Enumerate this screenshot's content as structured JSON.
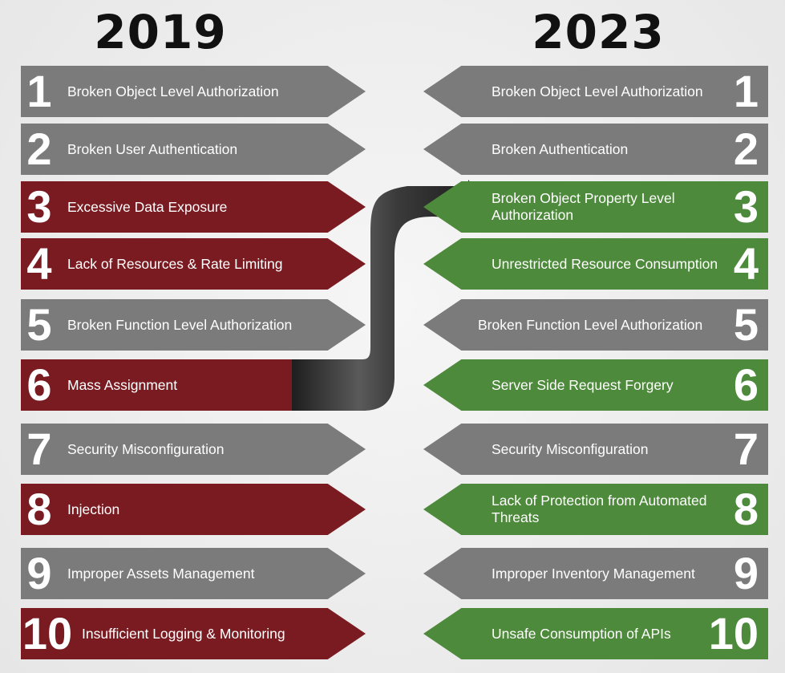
{
  "years": {
    "left": "2019",
    "right": "2023"
  },
  "left_items": [
    {
      "num": "1",
      "label": "Broken Object Level Authorization",
      "color": "gray"
    },
    {
      "num": "2",
      "label": "Broken User Authentication",
      "color": "gray"
    },
    {
      "num": "3",
      "label": "Excessive Data Exposure",
      "color": "red"
    },
    {
      "num": "4",
      "label": "Lack of Resources & Rate Limiting",
      "color": "red"
    },
    {
      "num": "5",
      "label": "Broken Function Level Authorization",
      "color": "gray"
    },
    {
      "num": "6",
      "label": "Mass Assignment",
      "color": "red"
    },
    {
      "num": "7",
      "label": "Security Misconfiguration",
      "color": "gray"
    },
    {
      "num": "8",
      "label": "Injection",
      "color": "red"
    },
    {
      "num": "9",
      "label": "Improper Assets Management",
      "color": "gray"
    },
    {
      "num": "10",
      "label": "Insufficient Logging & Monitoring",
      "color": "red"
    }
  ],
  "right_items": [
    {
      "num": "1",
      "label": "Broken Object Level Authorization",
      "color": "gray"
    },
    {
      "num": "2",
      "label": "Broken Authentication",
      "color": "gray"
    },
    {
      "num": "3",
      "label": "Broken Object Property Level Authorization",
      "color": "green"
    },
    {
      "num": "4",
      "label": "Unrestricted Resource Consumption",
      "color": "green"
    },
    {
      "num": "5",
      "label": "Broken Function Level Authorization",
      "color": "gray"
    },
    {
      "num": "6",
      "label": "Server Side Request Forgery",
      "color": "green"
    },
    {
      "num": "7",
      "label": "Security Misconfiguration",
      "color": "gray"
    },
    {
      "num": "8",
      "label": "Lack of Protection from Automated Threats",
      "color": "green"
    },
    {
      "num": "9",
      "label": "Improper Inventory Management",
      "color": "gray"
    },
    {
      "num": "10",
      "label": "Unsafe Consumption of APIs",
      "color": "green"
    }
  ],
  "colors": {
    "gray": "#7b7b7b",
    "red": "#7a1b21",
    "green": "#4e8a3b",
    "arrow": "#2d2d2d"
  }
}
